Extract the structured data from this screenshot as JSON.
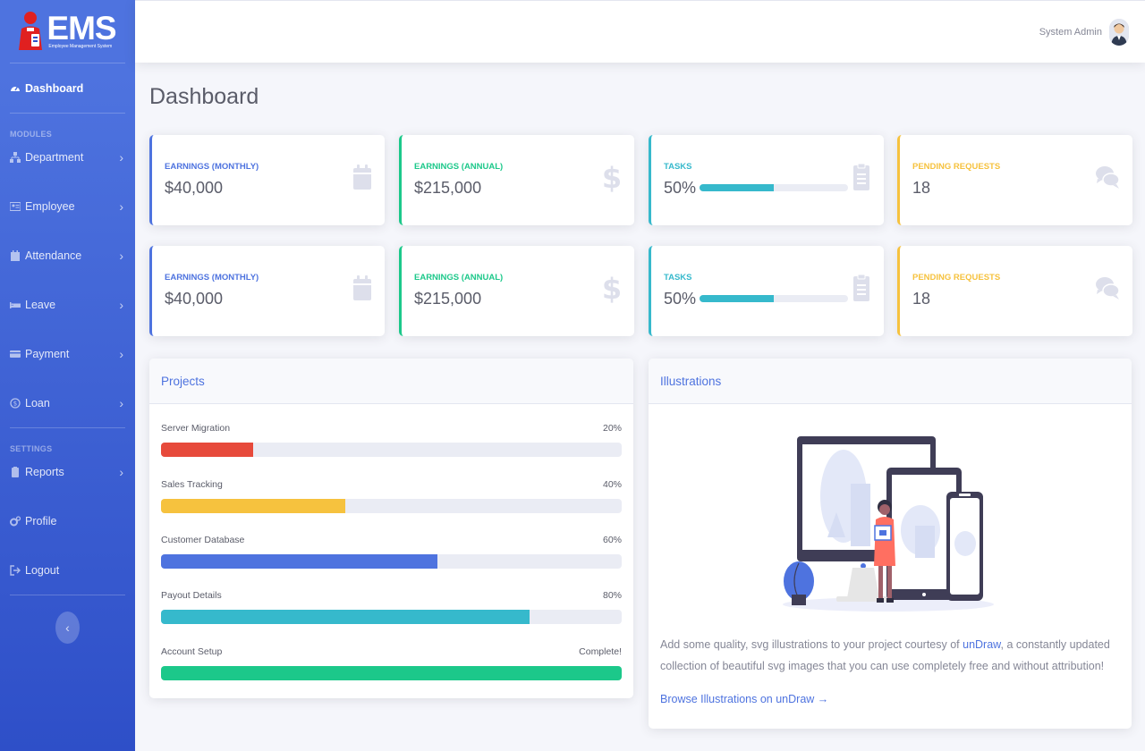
{
  "brand": {
    "title": "EMS",
    "subtitle": "Employee Management System"
  },
  "sidebar": {
    "dashboard": "Dashboard",
    "modules_heading": "MODULES",
    "modules": [
      {
        "label": "Department",
        "icon": "sitemap-icon"
      },
      {
        "label": "Employee",
        "icon": "id-card-icon"
      },
      {
        "label": "Attendance",
        "icon": "calendar-icon"
      },
      {
        "label": "Leave",
        "icon": "bed-icon"
      },
      {
        "label": "Payment",
        "icon": "credit-card-icon"
      },
      {
        "label": "Loan",
        "icon": "coin-icon"
      }
    ],
    "settings_heading": "SETTINGS",
    "settings": [
      {
        "label": "Reports",
        "icon": "report-icon"
      },
      {
        "label": "Profile",
        "icon": "cogs-icon"
      },
      {
        "label": "Logout",
        "icon": "logout-icon"
      }
    ],
    "toggle": "‹"
  },
  "topbar": {
    "user_name": "System Admin"
  },
  "page": {
    "title": "Dashboard"
  },
  "stats_row1": [
    {
      "label": "Earnings (Monthly)",
      "value": "$40,000",
      "color": "#4e73df",
      "icon": "calendar-icon"
    },
    {
      "label": "Earnings (Annual)",
      "value": "$215,000",
      "color": "#1cc88a",
      "icon": "dollar-icon"
    },
    {
      "label": "Tasks",
      "value": "50%",
      "color": "#36b9cc",
      "icon": "clipboard-icon",
      "progress": 50
    },
    {
      "label": "Pending Requests",
      "value": "18",
      "color": "#f6c23e",
      "icon": "comments-icon"
    }
  ],
  "stats_row2": [
    {
      "label": "Earnings (Monthly)",
      "value": "$40,000",
      "color": "#4e73df",
      "icon": "calendar-icon"
    },
    {
      "label": "Earnings (Annual)",
      "value": "$215,000",
      "color": "#1cc88a",
      "icon": "dollar-icon"
    },
    {
      "label": "Tasks",
      "value": "50%",
      "color": "#36b9cc",
      "icon": "clipboard-icon",
      "progress": 50
    },
    {
      "label": "Pending Requests",
      "value": "18",
      "color": "#f6c23e",
      "icon": "comments-icon"
    }
  ],
  "projects": {
    "title": "Projects",
    "items": [
      {
        "name": "Server Migration",
        "status": "20%",
        "progress": 20,
        "color": "#e74a3b"
      },
      {
        "name": "Sales Tracking",
        "status": "40%",
        "progress": 40,
        "color": "#f6c23e"
      },
      {
        "name": "Customer Database",
        "status": "60%",
        "progress": 60,
        "color": "#4e73df"
      },
      {
        "name": "Payout Details",
        "status": "80%",
        "progress": 80,
        "color": "#36b9cc"
      },
      {
        "name": "Account Setup",
        "status": "Complete!",
        "progress": 100,
        "color": "#1cc88a"
      }
    ]
  },
  "illustrations": {
    "title": "Illustrations",
    "text_before": "Add some quality, svg illustrations to your project courtesy of ",
    "link_undraw": "unDraw",
    "text_after": ", a constantly updated collection of beautiful svg images that you can use completely free and without attribution!",
    "browse_link": "Browse Illustrations on unDraw →"
  }
}
